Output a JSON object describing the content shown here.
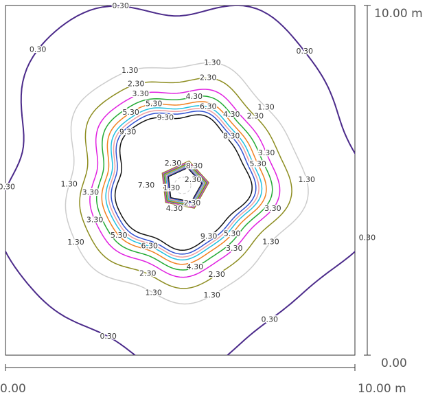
{
  "chart_data": {
    "type": "contour",
    "xlim": [
      0,
      10
    ],
    "ylim": [
      0,
      10
    ],
    "xticks": [
      {
        "value": 0,
        "label": "0.00"
      },
      {
        "value": 10,
        "label": "10.00 m"
      }
    ],
    "yticks": [
      {
        "value": 0,
        "label": "0.00"
      },
      {
        "value": 10,
        "label": "10.00 m"
      }
    ],
    "levels": [
      {
        "value": 0.3,
        "label": "0.30",
        "color": "#4b2a8a"
      },
      {
        "value": 1.3,
        "label": "1.30",
        "color": "#cccccc"
      },
      {
        "value": 2.3,
        "label": "2.30",
        "color": "#8c8c1e"
      },
      {
        "value": 3.3,
        "label": "3.30",
        "color": "#e020e0"
      },
      {
        "value": 4.3,
        "label": "4.30",
        "color": "#22aa33"
      },
      {
        "value": 5.3,
        "label": "5.30",
        "color": "#f08020"
      },
      {
        "value": 6.3,
        "label": "6.30",
        "color": "#20c0e0"
      },
      {
        "value": 7.3,
        "label": "7.30",
        "color": "#f0a0a0"
      },
      {
        "value": 8.3,
        "label": "8.30",
        "color": "#3050d0"
      },
      {
        "value": 9.3,
        "label": "9.30",
        "color": "#111111"
      }
    ]
  }
}
